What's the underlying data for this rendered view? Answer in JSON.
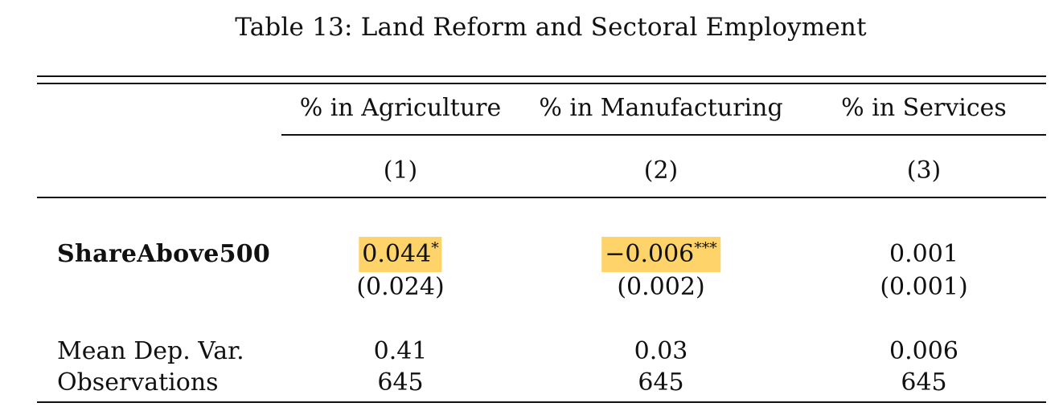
{
  "table": {
    "caption": "Table 13: Land Reform and Sectoral Employment",
    "columns": [
      {
        "header": "% in Agriculture",
        "number": "(1)"
      },
      {
        "header": "% in Manufacturing",
        "number": "(2)"
      },
      {
        "header": "% in Services",
        "number": "(3)"
      }
    ],
    "rows": {
      "share": {
        "label": "ShareAbove500",
        "coef": [
          {
            "value": "0.044",
            "stars": "*",
            "highlighted": true
          },
          {
            "value": "−0.006",
            "stars": "***",
            "highlighted": true
          },
          {
            "value": "0.001",
            "stars": "",
            "highlighted": false
          }
        ],
        "se": [
          "(0.024)",
          "(0.002)",
          "(0.001)"
        ]
      },
      "mean": {
        "label": "Mean Dep. Var.",
        "values": [
          "0.41",
          "0.03",
          "0.006"
        ]
      },
      "obs": {
        "label": "Observations",
        "values": [
          "645",
          "645",
          "645"
        ]
      }
    },
    "highlight_color": "#fdd36a"
  }
}
